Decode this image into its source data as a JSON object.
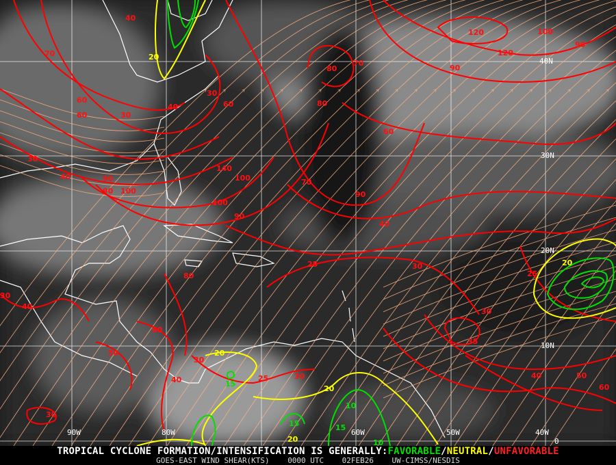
{
  "map": {
    "grid_labels": {
      "lat": [
        "40N",
        "30N",
        "20N",
        "10N",
        "0"
      ],
      "lon": [
        "90W",
        "80W",
        "60W",
        "50W",
        "40W"
      ]
    },
    "contour_labels": {
      "red": [
        "40",
        "70",
        "30",
        "40",
        "30",
        "60",
        "60",
        "60",
        "30",
        "40",
        "90",
        "90",
        "100",
        "140",
        "100",
        "100",
        "90",
        "70",
        "90",
        "40",
        "80",
        "70",
        "80",
        "60",
        "120",
        "100",
        "120",
        "90",
        "90",
        "25",
        "30",
        "25",
        "30",
        "35",
        "60",
        "50",
        "40",
        "30",
        "80",
        "30",
        "40",
        "25",
        "30",
        "30",
        "40",
        "50",
        "60"
      ],
      "yellow": [
        "20",
        "20",
        "20",
        "20",
        "20"
      ],
      "green": [
        "15",
        "15",
        "15",
        "10",
        "10"
      ]
    },
    "colors": {
      "unfavorable": "#ff0000",
      "neutral": "#ffff00",
      "favorable": "#00e000",
      "streamline": "#ffb080",
      "grid": "#ffffff",
      "coast": "#ffffff"
    }
  },
  "footer": {
    "headline": "TROPICAL CYCLONE FORMATION/INTENSIFICATION IS GENERALLY:",
    "favorable": "FAVORABLE",
    "neutral": "NEUTRAL",
    "unfavorable": "UNFAVORABLE",
    "sep": "/",
    "product": "GOES-EAST WIND SHEAR(KTS)",
    "time": "0000 UTC",
    "date": "02FEB26",
    "source": "UW-CIMSS/NESDIS"
  }
}
